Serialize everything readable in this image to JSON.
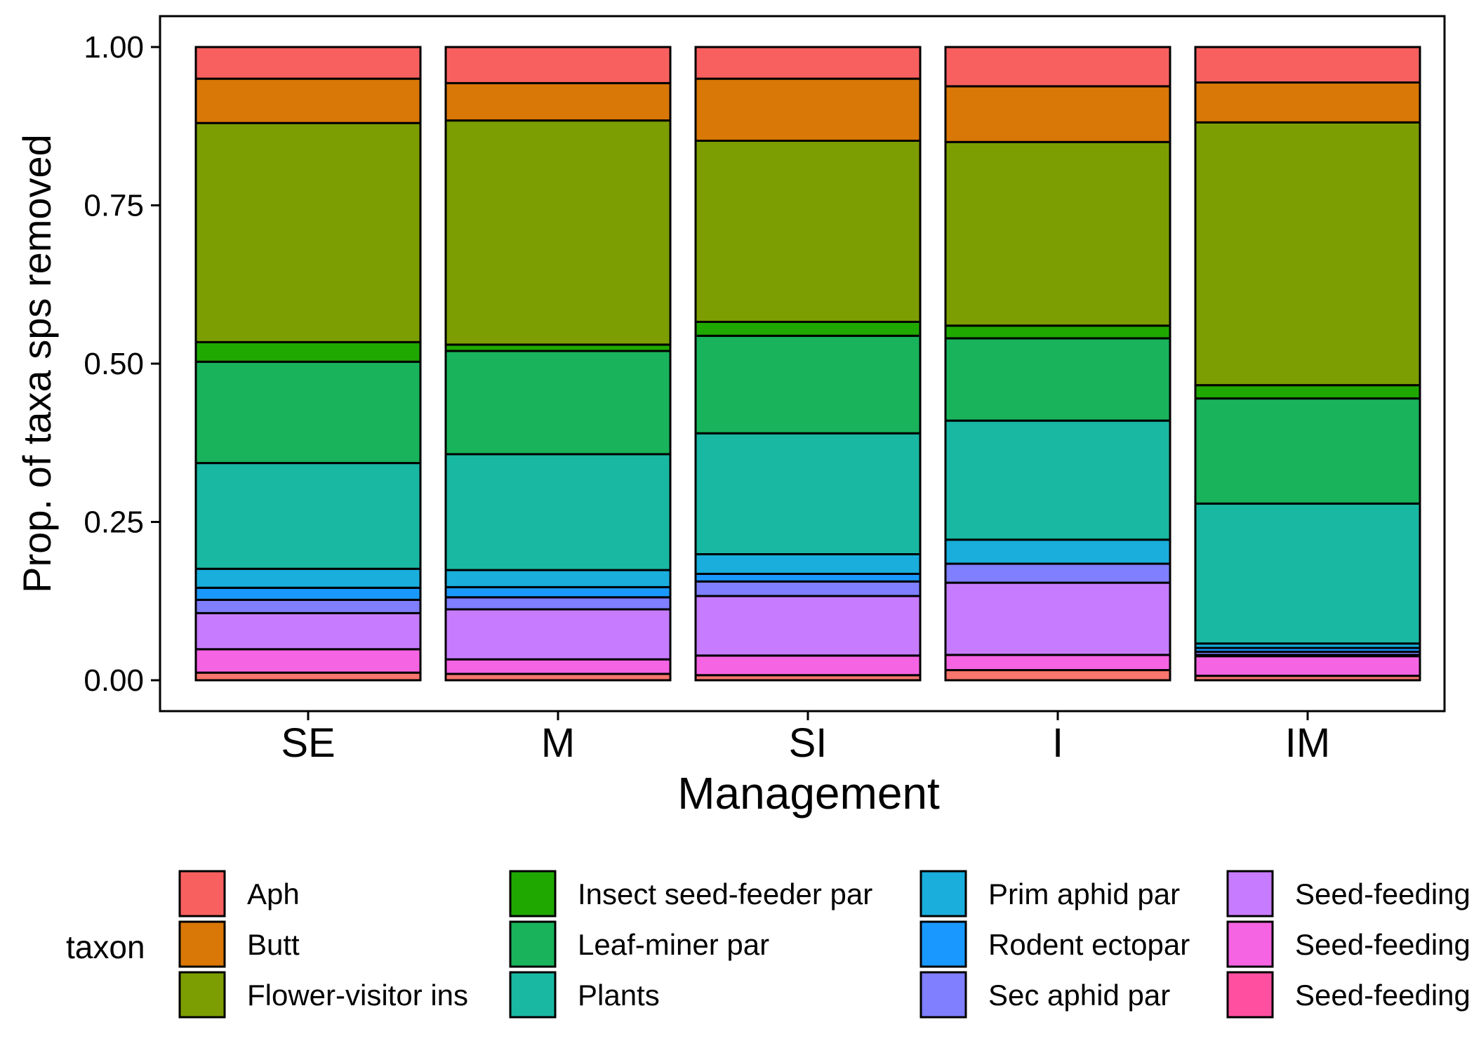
{
  "chart_data": {
    "type": "bar",
    "stacked": true,
    "xlabel": "Management",
    "ylabel": "Prop. of taxa sps removed",
    "ylim": [
      0,
      1
    ],
    "yticks": [
      "0.00",
      "0.25",
      "0.50",
      "0.75",
      "1.00"
    ],
    "categories": [
      "SE",
      "M",
      "SI",
      "I",
      "IM"
    ],
    "legend_title": "taxon",
    "legend_position": "bottom",
    "series": [
      {
        "name": "Seed-feeding",
        "color": "#F8766D",
        "values": [
          0.012,
          0.01,
          0.008,
          0.016,
          0.007
        ]
      },
      {
        "name": "Seed-feeding",
        "color": "#F564E3",
        "values": [
          0.037,
          0.023,
          0.031,
          0.024,
          0.031
        ]
      },
      {
        "name": "Seed-feeding",
        "color": "#C77CFF",
        "values": [
          0.057,
          0.079,
          0.094,
          0.114,
          0.002
        ]
      },
      {
        "name": "Sec aphid par",
        "color": "#7F7FFF",
        "values": [
          0.021,
          0.019,
          0.023,
          0.03,
          0.005
        ]
      },
      {
        "name": "Rodent ectopar",
        "color": "#1999FF",
        "values": [
          0.019,
          0.016,
          0.012,
          0.0,
          0.006
        ]
      },
      {
        "name": "Prim aphid par",
        "color": "#19AEDC",
        "values": [
          0.03,
          0.027,
          0.031,
          0.038,
          0.007
        ]
      },
      {
        "name": "Plants",
        "color": "#19B8A3",
        "values": [
          0.167,
          0.183,
          0.191,
          0.188,
          0.221
        ]
      },
      {
        "name": "Leaf-miner par",
        "color": "#19B35B",
        "values": [
          0.16,
          0.163,
          0.154,
          0.13,
          0.166
        ]
      },
      {
        "name": "Insect seed-feeder par",
        "color": "#1FA800",
        "values": [
          0.031,
          0.01,
          0.022,
          0.02,
          0.021
        ]
      },
      {
        "name": "Flower-visitor ins",
        "color": "#7C9E02",
        "values": [
          0.346,
          0.354,
          0.286,
          0.29,
          0.415
        ]
      },
      {
        "name": "Butt",
        "color": "#D97707",
        "values": [
          0.07,
          0.059,
          0.098,
          0.088,
          0.063
        ]
      },
      {
        "name": "Aph",
        "color": "#F8605F",
        "values": [
          0.05,
          0.057,
          0.05,
          0.062,
          0.056
        ]
      }
    ],
    "legend_items": [
      {
        "label": "Aph",
        "color": "#F8605F"
      },
      {
        "label": "Butt",
        "color": "#D97707"
      },
      {
        "label": "Flower-visitor ins",
        "color": "#7C9E02"
      },
      {
        "label": "Insect seed-feeder par",
        "color": "#1FA800"
      },
      {
        "label": "Leaf-miner par",
        "color": "#19B35B"
      },
      {
        "label": "Plants",
        "color": "#19B8A3"
      },
      {
        "label": "Prim aphid par",
        "color": "#19AEDC"
      },
      {
        "label": "Rodent ectopar",
        "color": "#1999FF"
      },
      {
        "label": "Sec aphid par",
        "color": "#7F7FFF"
      },
      {
        "label": "Seed-feeding",
        "color": "#C77CFF"
      },
      {
        "label": "Seed-feeding",
        "color": "#F564E3"
      },
      {
        "label": "Seed-feeding",
        "color": "#FF4FA0"
      }
    ],
    "grid": false
  }
}
